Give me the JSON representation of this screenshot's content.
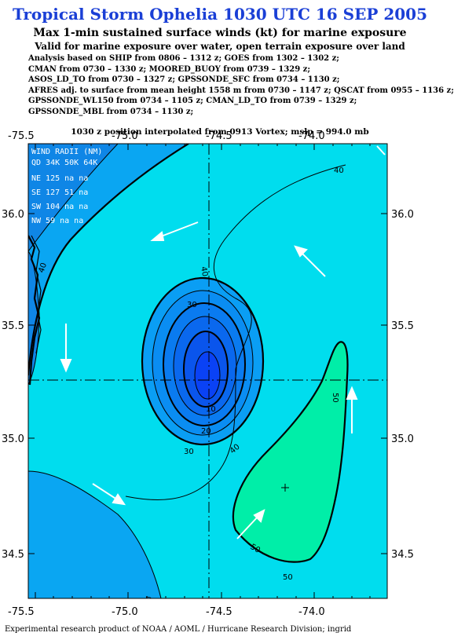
{
  "header": {
    "title": "Tropical Storm Ophelia 1030 UTC 16 SEP 2005",
    "subtitle": "Max 1-min sustained surface winds (kt) for marine exposure",
    "subtitle2": "Valid for marine exposure over water, open terrain exposure over land"
  },
  "analysis_lines": [
    "Analysis based on  SHIP from 0806 – 1312 z;  GOES from 1302 – 1302 z;",
    "CMAN from 0730 – 1330 z;  MOORED_BUOY from 0739 – 1329 z;",
    "ASOS_LD_TO from 0730 – 1327 z;  GPSSONDE_SFC from 0734 – 1130 z;",
    "AFRES adj. to surface from mean height 1558 m from 0730 – 1147 z;  QSCAT from 0955 – 1136 z;",
    "GPSSONDE_WL150 from 0734 – 1105 z;  CMAN_LD_TO from 0739 – 1329 z;",
    "GPSSONDE_MBL from 0734 – 1130 z;"
  ],
  "position_note": "1030 z position interpolated from 0913 Vortex; mslp = 994.0 mb",
  "map": {
    "x_ticks": [
      "-75.5",
      "-75.0",
      "-74.5",
      "-74.0"
    ],
    "y_ticks": [
      "36.0",
      "35.5",
      "35.0",
      "34.5"
    ],
    "contour_labels": [
      "40",
      "40",
      "40",
      "40",
      "40",
      "30",
      "30",
      "20",
      "10",
      "50",
      "50",
      "50"
    ],
    "wind_radii": {
      "header": "WIND RADII (NM)",
      "columns": "QD 34K 50K 64K",
      "rows": [
        "NE 125  na  na",
        "SE 127  51  na",
        "SW 104  na  na",
        "NW  59  na  na"
      ]
    },
    "colors": {
      "outer": "#0aa6f2",
      "band40": "#00ddee",
      "band50": "#00eea8",
      "core": "#0a42f5"
    }
  },
  "caption": "Experimental research product of NOAA / AOML / Hurricane Research Division; ingrid"
}
